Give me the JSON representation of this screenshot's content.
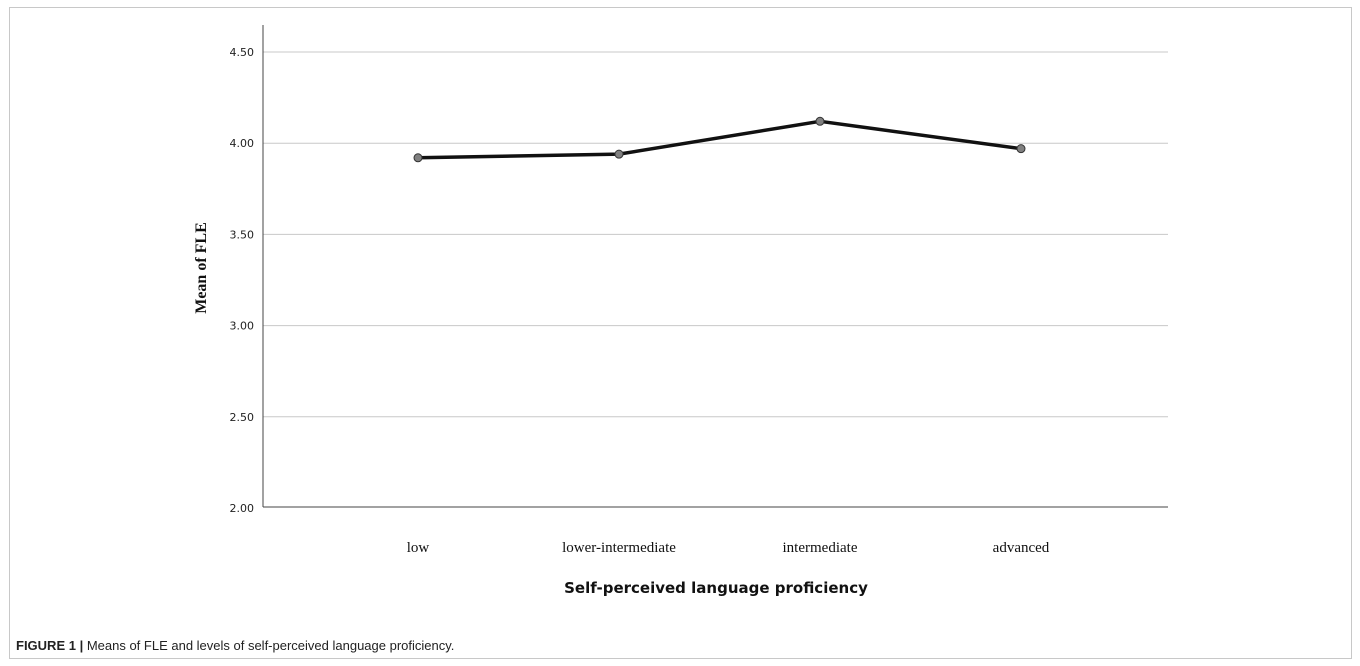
{
  "caption": {
    "label": "FIGURE 1 |",
    "text": " Means of FLE and levels of self-perceived language proficiency."
  },
  "chart_data": {
    "type": "line",
    "title": "",
    "xlabel": "Self-perceived language proficiency",
    "ylabel": "Mean of FLE",
    "categories": [
      "low",
      "lower-intermediate",
      "intermediate",
      "advanced"
    ],
    "series": [
      {
        "values": [
          3.92,
          3.94,
          4.12,
          3.97
        ]
      }
    ],
    "ylim": [
      2.0,
      4.5
    ],
    "yticks": [
      "2.00",
      "2.50",
      "3.00",
      "3.50",
      "4.00",
      "4.50"
    ],
    "grid": true,
    "line_color": "#111111",
    "marker_color": "#808080"
  }
}
